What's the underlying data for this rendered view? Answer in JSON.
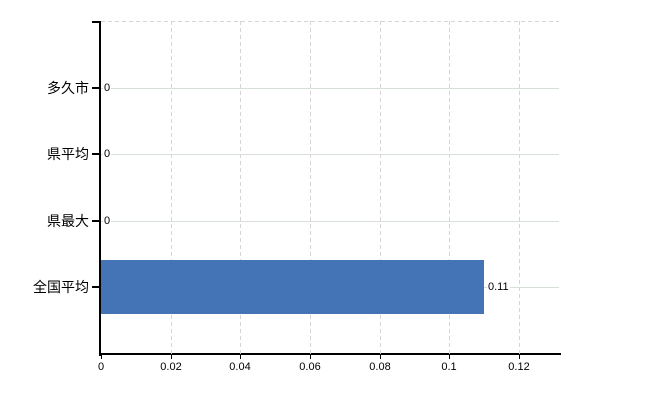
{
  "chart_data": {
    "type": "bar",
    "orientation": "horizontal",
    "title": "",
    "categories": [
      "多久市",
      "県平均",
      "県最大",
      "全国平均"
    ],
    "values": [
      0,
      0,
      0,
      0.11
    ],
    "value_labels": [
      "0",
      "0",
      "0",
      "0.11"
    ],
    "x_ticks": [
      0,
      0.02,
      0.04,
      0.06,
      0.08,
      0.1,
      0.12
    ],
    "x_tick_labels": [
      "0",
      "0.02",
      "0.04",
      "0.06",
      "0.08",
      "0.1",
      "0.12"
    ],
    "xlim": [
      0,
      0.1315
    ],
    "xlabel": "",
    "ylabel": "",
    "grid": true,
    "legend": "none",
    "colors": {
      "bar": "#4474b5",
      "h_gridline": "#d7e0d6",
      "v_gridline": "#d9d3d9",
      "axis": "#000000",
      "text": "#000000",
      "background": "#ffffff"
    }
  }
}
